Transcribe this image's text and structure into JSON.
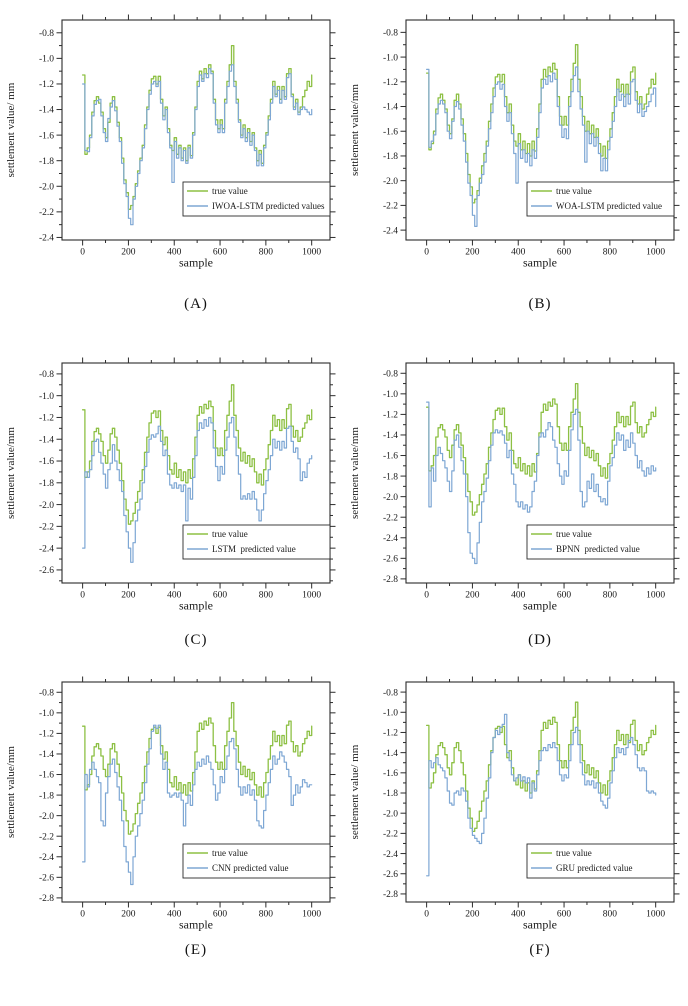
{
  "figure": {
    "background": "#ffffff",
    "colors": {
      "true_line": "#8dc044",
      "predicted_line": "#7ea7d4",
      "axis": "#2b2b2b",
      "text": "#1a1a1a"
    }
  },
  "chart_data": {
    "type": "line",
    "x": {
      "label": "sample",
      "start": 0,
      "step": 10,
      "count": 101,
      "range": [
        -90,
        1080
      ],
      "tick_labels": [
        "0",
        "200",
        "400",
        "600",
        "800",
        "1000"
      ],
      "minor_tick_step": 100
    },
    "grid": "off",
    "legend_position": "inside-lower-right",
    "true_series": {
      "name": "true value",
      "color": "#8dc044",
      "values": [
        -1.13,
        -1.75,
        -1.7,
        -1.6,
        -1.42,
        -1.33,
        -1.3,
        -1.35,
        -1.42,
        -1.55,
        -1.62,
        -1.5,
        -1.35,
        -1.3,
        -1.38,
        -1.5,
        -1.62,
        -1.78,
        -1.95,
        -2.05,
        -2.18,
        -2.15,
        -2.08,
        -1.98,
        -1.88,
        -1.78,
        -1.68,
        -1.52,
        -1.38,
        -1.25,
        -1.16,
        -1.14,
        -1.2,
        -1.14,
        -1.32,
        -1.45,
        -1.38,
        -1.55,
        -1.68,
        -1.72,
        -1.62,
        -1.75,
        -1.68,
        -1.78,
        -1.7,
        -1.8,
        -1.68,
        -1.76,
        -1.58,
        -1.38,
        -1.18,
        -1.1,
        -1.16,
        -1.08,
        -1.12,
        -1.05,
        -1.1,
        -1.32,
        -1.48,
        -1.55,
        -1.48,
        -1.55,
        -1.32,
        -1.18,
        -1.05,
        -0.9,
        -1.18,
        -1.32,
        -1.48,
        -1.6,
        -1.52,
        -1.62,
        -1.55,
        -1.65,
        -1.58,
        -1.7,
        -1.8,
        -1.72,
        -1.82,
        -1.68,
        -1.58,
        -1.45,
        -1.32,
        -1.18,
        -1.28,
        -1.22,
        -1.32,
        -1.22,
        -1.3,
        -1.12,
        -1.08,
        -1.28,
        -1.38,
        -1.32,
        -1.42,
        -1.38,
        -1.3,
        -1.25,
        -1.18,
        -1.22,
        -1.13
      ]
    },
    "panels": [
      {
        "caption": "(A)",
        "model": "IWOA-LSTM",
        "ylabel": "settlement value/ mm",
        "xlabel": "sample",
        "legend": [
          "true value",
          "IWOA-LSTM predicted values"
        ],
        "ylim": [
          -2.42,
          -0.7
        ],
        "ytick_labels": [
          "-0.8",
          "-1.0",
          "-1.2",
          "-1.4",
          "-1.6",
          "-1.8",
          "-2.0",
          "-2.2",
          "-2.4"
        ],
        "predicted": {
          "name": "IWOA-LSTM predicted values",
          "color": "#7ea7d4",
          "values": [
            -1.2,
            -1.72,
            -1.73,
            -1.62,
            -1.45,
            -1.36,
            -1.33,
            -1.32,
            -1.45,
            -1.58,
            -1.65,
            -1.47,
            -1.38,
            -1.33,
            -1.41,
            -1.53,
            -1.65,
            -1.82,
            -1.98,
            -2.08,
            -2.25,
            -2.3,
            -2.1,
            -2.0,
            -1.9,
            -1.8,
            -1.7,
            -1.55,
            -1.4,
            -1.28,
            -1.2,
            -1.18,
            -1.22,
            -1.18,
            -1.35,
            -1.48,
            -1.4,
            -1.58,
            -1.7,
            -1.97,
            -1.65,
            -1.78,
            -1.7,
            -1.8,
            -1.72,
            -1.82,
            -1.7,
            -1.78,
            -1.6,
            -1.4,
            -1.22,
            -1.13,
            -1.18,
            -1.12,
            -1.15,
            -1.08,
            -1.12,
            -1.35,
            -1.52,
            -1.58,
            -1.52,
            -1.58,
            -1.35,
            -1.22,
            -1.1,
            -1.05,
            -1.22,
            -1.35,
            -1.5,
            -1.62,
            -1.55,
            -1.65,
            -1.58,
            -1.68,
            -1.6,
            -1.72,
            -1.84,
            -1.75,
            -1.84,
            -1.7,
            -1.6,
            -1.48,
            -1.35,
            -1.22,
            -1.3,
            -1.25,
            -1.35,
            -1.25,
            -1.32,
            -1.15,
            -1.12,
            -1.3,
            -1.4,
            -1.35,
            -1.44,
            -1.4,
            -1.38,
            -1.4,
            -1.42,
            -1.44,
            -1.4
          ]
        }
      },
      {
        "caption": "(B)",
        "model": "WOA-LSTM",
        "ylabel": "settlement value/mm",
        "xlabel": "sample",
        "legend": [
          "true value",
          "WOA-LSTM predicted value"
        ],
        "ylim": [
          -2.48,
          -0.7
        ],
        "ytick_labels": [
          "-0.8",
          "-1.0",
          "-1.2",
          "-1.4",
          "-1.6",
          "-1.8",
          "-2.0",
          "-2.2",
          "-2.4"
        ],
        "predicted": {
          "name": "WOA-LSTM predicted value",
          "color": "#7ea7d4",
          "values": [
            -1.1,
            -1.73,
            -1.68,
            -1.63,
            -1.46,
            -1.38,
            -1.35,
            -1.38,
            -1.45,
            -1.6,
            -1.66,
            -1.52,
            -1.4,
            -1.36,
            -1.42,
            -1.55,
            -1.68,
            -1.85,
            -2.02,
            -2.12,
            -2.28,
            -2.37,
            -2.12,
            -2.02,
            -1.95,
            -1.85,
            -1.72,
            -1.58,
            -1.45,
            -1.32,
            -1.22,
            -1.2,
            -1.26,
            -1.22,
            -1.4,
            -1.52,
            -1.45,
            -1.62,
            -1.78,
            -2.02,
            -1.7,
            -1.82,
            -1.75,
            -1.85,
            -1.78,
            -1.88,
            -1.75,
            -1.82,
            -1.65,
            -1.45,
            -1.25,
            -1.18,
            -1.22,
            -1.15,
            -1.2,
            -1.13,
            -1.18,
            -1.4,
            -1.55,
            -1.65,
            -1.58,
            -1.66,
            -1.4,
            -1.28,
            -1.15,
            -1.08,
            -1.28,
            -1.42,
            -1.55,
            -1.85,
            -1.6,
            -1.7,
            -1.62,
            -1.72,
            -1.65,
            -1.78,
            -1.92,
            -1.82,
            -1.92,
            -1.75,
            -1.65,
            -1.52,
            -1.4,
            -1.26,
            -1.35,
            -1.3,
            -1.4,
            -1.3,
            -1.38,
            -1.2,
            -1.18,
            -1.35,
            -1.45,
            -1.38,
            -1.48,
            -1.44,
            -1.4,
            -1.36,
            -1.3,
            -1.25,
            -1.4
          ]
        }
      },
      {
        "caption": "(C)",
        "model": "LSTM",
        "ylabel": "settlement value/mm",
        "xlabel": "sample",
        "legend": [
          "true value",
          "LSTM  predicted value"
        ],
        "ylim": [
          -2.72,
          -0.7
        ],
        "ytick_labels": [
          "-0.8",
          "-1.0",
          "-1.2",
          "-1.4",
          "-1.6",
          "-1.8",
          "-2.0",
          "-2.2",
          "-2.4",
          "-2.6"
        ],
        "predicted": {
          "name": "LSTM  predicted value",
          "color": "#7ea7d4",
          "values": [
            -2.4,
            -1.7,
            -1.75,
            -1.68,
            -1.55,
            -1.42,
            -1.4,
            -1.52,
            -1.62,
            -1.72,
            -1.85,
            -1.68,
            -1.62,
            -1.45,
            -1.6,
            -1.68,
            -1.78,
            -1.88,
            -2.1,
            -2.25,
            -2.4,
            -2.53,
            -2.35,
            -2.15,
            -2.05,
            -1.95,
            -1.8,
            -1.65,
            -1.52,
            -1.4,
            -1.36,
            -1.38,
            -1.35,
            -1.28,
            -1.42,
            -1.55,
            -1.5,
            -1.72,
            -1.82,
            -1.85,
            -1.8,
            -1.85,
            -1.82,
            -1.88,
            -1.82,
            -2.15,
            -1.85,
            -1.95,
            -1.75,
            -1.55,
            -1.32,
            -1.25,
            -1.3,
            -1.22,
            -1.28,
            -1.2,
            -1.25,
            -1.48,
            -1.65,
            -1.78,
            -1.65,
            -1.72,
            -1.5,
            -1.38,
            -1.25,
            -1.2,
            -1.38,
            -1.55,
            -1.72,
            -1.95,
            -1.92,
            -1.95,
            -1.9,
            -1.95,
            -1.88,
            -1.95,
            -2.05,
            -2.15,
            -2.05,
            -1.9,
            -1.78,
            -1.68,
            -1.55,
            -1.4,
            -1.48,
            -1.42,
            -1.5,
            -1.42,
            -1.48,
            -1.3,
            -1.28,
            -1.42,
            -1.52,
            -1.48,
            -1.58,
            -1.78,
            -1.7,
            -1.75,
            -1.62,
            -1.58,
            -1.55
          ]
        }
      },
      {
        "caption": "(D)",
        "model": "BPNN",
        "ylabel": "settlement value/mm",
        "xlabel": "sample",
        "legend": [
          "true value",
          "BPNN  predicted value"
        ],
        "ylim": [
          -2.84,
          -0.7
        ],
        "ytick_labels": [
          "-0.8",
          "-1.0",
          "-1.2",
          "-1.4",
          "-1.6",
          "-1.8",
          "-2.0",
          "-2.2",
          "-2.4",
          "-2.6",
          "-2.8"
        ],
        "predicted": {
          "name": "BPNN  predicted value",
          "color": "#7ea7d4",
          "values": [
            -1.08,
            -2.1,
            -1.72,
            -1.85,
            -1.6,
            -1.52,
            -1.58,
            -1.65,
            -1.72,
            -1.85,
            -1.95,
            -1.75,
            -1.45,
            -1.4,
            -1.52,
            -1.65,
            -1.78,
            -2.0,
            -2.35,
            -2.55,
            -2.6,
            -2.65,
            -2.45,
            -2.25,
            -2.05,
            -1.95,
            -1.82,
            -1.65,
            -1.5,
            -1.38,
            -1.35,
            -1.38,
            -1.36,
            -1.4,
            -1.48,
            -1.62,
            -1.55,
            -1.78,
            -1.88,
            -2.05,
            -2.1,
            -2.05,
            -2.12,
            -2.08,
            -2.15,
            -2.1,
            -1.95,
            -1.85,
            -1.6,
            -1.42,
            -1.38,
            -1.42,
            -1.35,
            -1.28,
            -1.32,
            -1.45,
            -1.52,
            -1.68,
            -1.8,
            -1.88,
            -1.75,
            -1.8,
            -1.55,
            -1.35,
            -1.2,
            -1.15,
            -1.45,
            -1.95,
            -2.1,
            -2.05,
            -1.85,
            -1.92,
            -1.78,
            -1.95,
            -1.88,
            -2.0,
            -2.05,
            -2.02,
            -2.08,
            -1.85,
            -1.7,
            -1.62,
            -1.5,
            -1.38,
            -1.45,
            -1.4,
            -1.55,
            -1.45,
            -1.52,
            -1.38,
            -1.48,
            -1.6,
            -1.72,
            -1.65,
            -1.75,
            -1.8,
            -1.72,
            -1.78,
            -1.7,
            -1.75,
            -1.72
          ]
        }
      },
      {
        "caption": "(E)",
        "model": "CNN",
        "ylabel": "settlement value/mm",
        "xlabel": "sample",
        "legend": [
          "true value",
          "CNN predicted value"
        ],
        "ylim": [
          -2.84,
          -0.7
        ],
        "ytick_labels": [
          "-0.8",
          "-1.0",
          "-1.2",
          "-1.4",
          "-1.6",
          "-1.8",
          "-2.0",
          "-2.2",
          "-2.4",
          "-2.6",
          "-2.8"
        ],
        "predicted": {
          "name": "CNN predicted value",
          "color": "#7ea7d4",
          "values": [
            -2.45,
            -1.6,
            -1.72,
            -1.55,
            -1.48,
            -1.55,
            -1.62,
            -1.68,
            -2.05,
            -2.1,
            -1.78,
            -1.62,
            -1.5,
            -1.45,
            -1.58,
            -1.72,
            -1.85,
            -2.05,
            -2.3,
            -2.45,
            -2.55,
            -2.67,
            -2.4,
            -2.2,
            -2.1,
            -1.98,
            -1.85,
            -1.68,
            -1.5,
            -1.35,
            -1.18,
            -1.12,
            -1.15,
            -1.12,
            -1.4,
            -1.55,
            -1.48,
            -1.78,
            -1.82,
            -1.8,
            -1.78,
            -1.82,
            -1.78,
            -1.85,
            -2.1,
            -1.88,
            -1.8,
            -1.9,
            -1.7,
            -1.55,
            -1.48,
            -1.52,
            -1.45,
            -1.5,
            -1.42,
            -1.48,
            -1.55,
            -1.7,
            -1.85,
            -1.78,
            -1.62,
            -1.68,
            -1.55,
            -1.42,
            -1.28,
            -1.25,
            -1.35,
            -1.55,
            -1.72,
            -1.8,
            -1.72,
            -1.78,
            -1.7,
            -1.8,
            -1.75,
            -1.85,
            -2.05,
            -2.1,
            -2.12,
            -1.95,
            -1.8,
            -1.68,
            -1.55,
            -1.42,
            -1.5,
            -1.45,
            -1.38,
            -1.42,
            -1.48,
            -1.55,
            -1.62,
            -1.9,
            -1.8,
            -1.7,
            -1.78,
            -1.72,
            -1.65,
            -1.68,
            -1.72,
            -1.7,
            -1.7
          ]
        }
      },
      {
        "caption": "(F)",
        "model": "GRU",
        "ylabel": "settlement value/ mm",
        "xlabel": "sample",
        "legend": [
          "true value",
          "GRU predicted value"
        ],
        "ylim": [
          -2.88,
          -0.7
        ],
        "ytick_labels": [
          "-0.8",
          "-1.0",
          "-1.2",
          "-1.4",
          "-1.6",
          "-1.8",
          "-2.0",
          "-2.2",
          "-2.4",
          "-2.6",
          "-2.8"
        ],
        "predicted": {
          "name": "GRU predicted value",
          "color": "#7ea7d4",
          "values": [
            -2.62,
            -1.48,
            -1.55,
            -1.5,
            -1.45,
            -1.52,
            -1.55,
            -1.58,
            -1.65,
            -1.78,
            -1.9,
            -1.92,
            -1.8,
            -1.78,
            -1.82,
            -1.75,
            -1.78,
            -1.88,
            -2.05,
            -2.15,
            -2.22,
            -2.25,
            -2.28,
            -2.3,
            -2.2,
            -2.05,
            -1.85,
            -1.65,
            -1.4,
            -1.25,
            -1.18,
            -1.22,
            -1.15,
            -1.12,
            -1.02,
            -1.4,
            -1.48,
            -1.62,
            -1.68,
            -1.65,
            -1.62,
            -1.68,
            -1.64,
            -1.7,
            -1.65,
            -1.85,
            -1.7,
            -1.78,
            -1.62,
            -1.48,
            -1.38,
            -1.35,
            -1.38,
            -1.32,
            -1.35,
            -1.3,
            -1.35,
            -1.48,
            -1.62,
            -1.68,
            -1.62,
            -1.65,
            -1.48,
            -1.32,
            -1.2,
            -1.15,
            -1.32,
            -1.5,
            -1.62,
            -1.72,
            -1.68,
            -1.72,
            -1.68,
            -1.75,
            -1.7,
            -1.8,
            -1.88,
            -1.92,
            -1.95,
            -1.85,
            -1.7,
            -1.58,
            -1.45,
            -1.35,
            -1.4,
            -1.36,
            -1.42,
            -1.35,
            -1.28,
            -1.25,
            -1.32,
            -1.42,
            -1.55,
            -1.58,
            -1.55,
            -1.58,
            -1.78,
            -1.8,
            -1.78,
            -1.8,
            -1.82
          ]
        }
      }
    ]
  }
}
